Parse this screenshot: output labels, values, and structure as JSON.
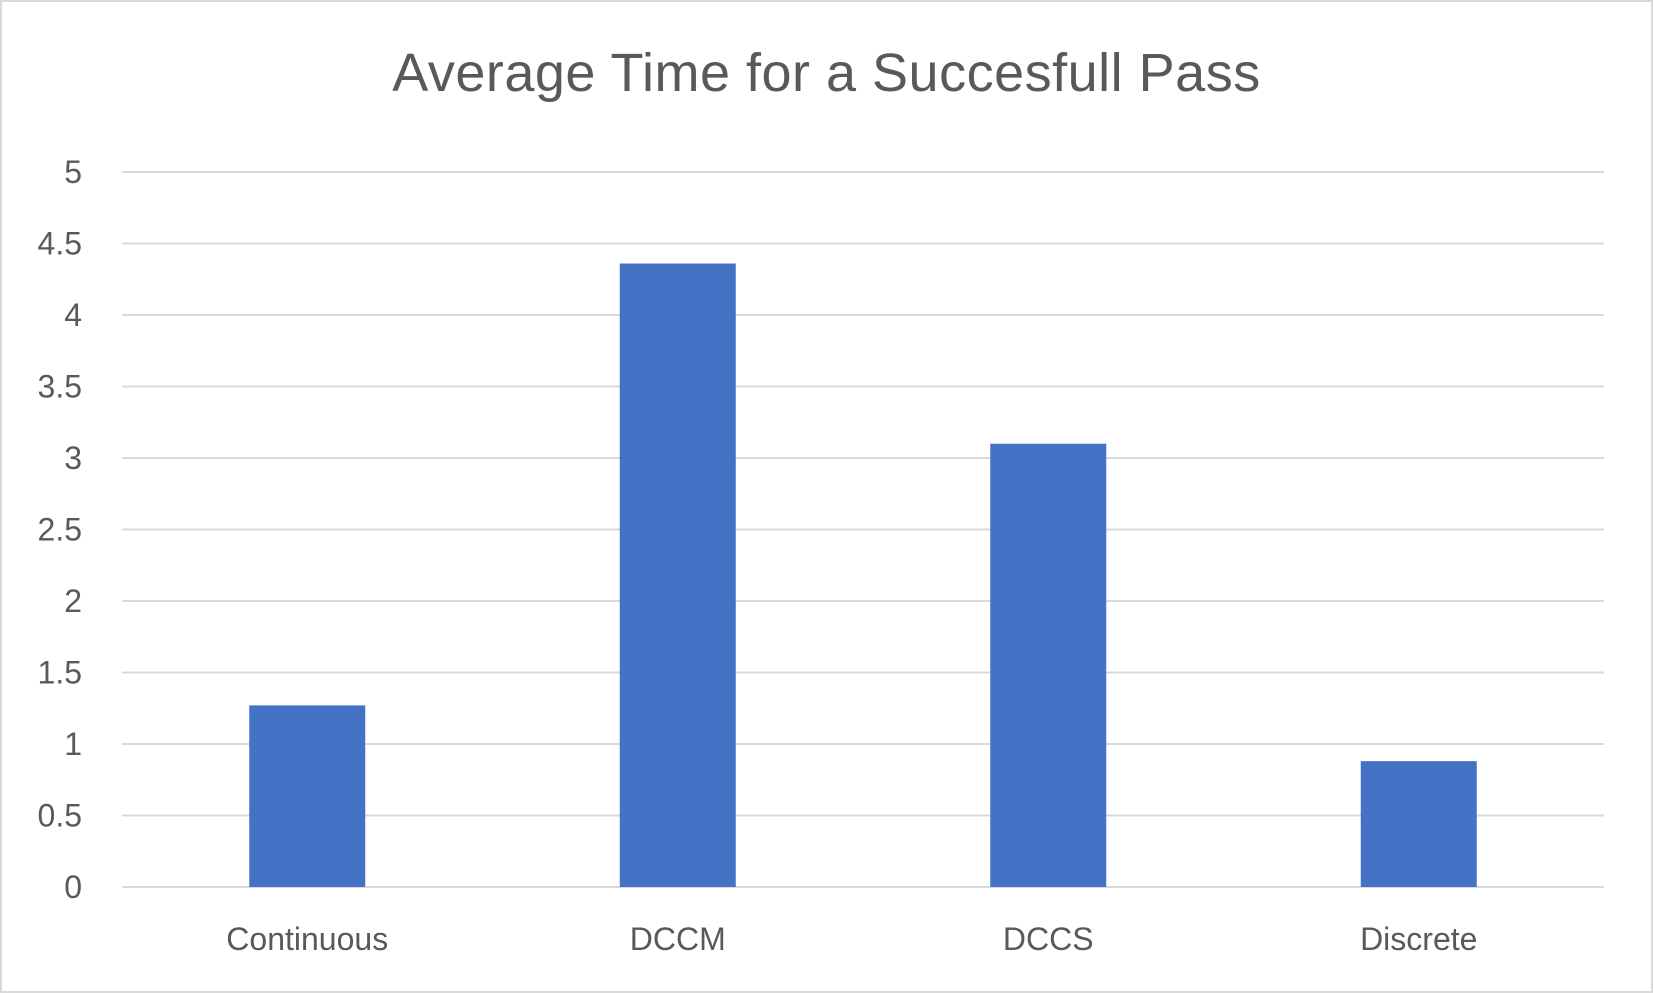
{
  "chart_data": {
    "type": "bar",
    "title": "Average Time for a Succesfull Pass",
    "categories": [
      "Continuous",
      "DCCM",
      "DCCS",
      "Discrete"
    ],
    "values": [
      1.27,
      4.36,
      3.1,
      0.88
    ],
    "ylim": [
      0,
      5
    ],
    "yticks": [
      "0",
      "0.5",
      "1",
      "1.5",
      "2",
      "2.5",
      "3",
      "3.5",
      "4",
      "4.5",
      "5"
    ],
    "xlabel": "",
    "ylabel": "",
    "grid": true,
    "legend": "none",
    "bar_color": "#4472c4",
    "grid_color": "#d9d9d9",
    "text_color": "#595959"
  }
}
